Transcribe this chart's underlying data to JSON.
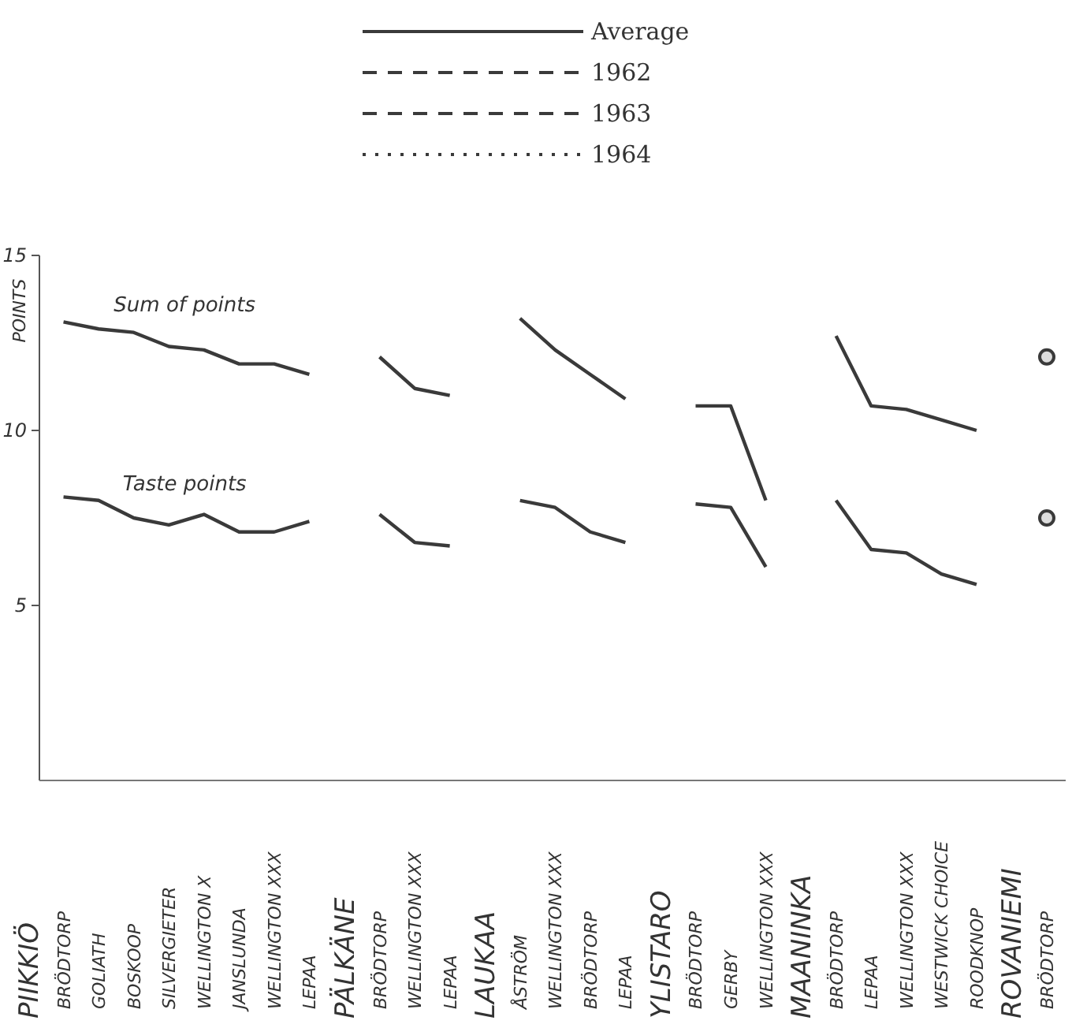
{
  "chart_data": {
    "type": "line",
    "categories": [
      null,
      "BRÖDTORP",
      "GOLIATH",
      "BOSKOOP",
      "SILVERGIETER",
      "WELLINGTON X",
      "JANSLUNDA",
      "WELLINGTON XXX",
      "LEPAA",
      null,
      "BRÖDTORP",
      "WELLINGTON XXX",
      "LEPAA",
      null,
      "ÅSTRÖM",
      "WELLINGTON XXX",
      "BRÖDTORP",
      "LEPAA",
      null,
      "BRÖDTORP",
      "GERBY",
      "WELLINGTON XXX",
      null,
      "BRÖDTORP",
      "LEPAA",
      "WELLINGTON XXX",
      "WESTWICK CHOICE",
      "ROODKNOP",
      null,
      "BRÖDTORP"
    ],
    "series": [
      {
        "name": "Average",
        "color": "#3a3a3a",
        "line_style": "solid",
        "values": [
          null,
          13.1,
          12.9,
          12.8,
          12.4,
          12.3,
          11.9,
          11.9,
          11.6,
          null,
          12.1,
          11.2,
          11.0,
          null,
          13.2,
          12.3,
          11.6,
          10.9,
          null,
          10.7,
          10.7,
          8.0,
          null,
          12.7,
          10.7,
          10.6,
          10.3,
          10.0,
          null,
          12.1
        ]
      },
      {
        "color": "#3a3a3a",
        "line_style": "solid",
        "values": [
          null,
          8.1,
          8.0,
          7.5,
          7.3,
          7.6,
          7.1,
          7.1,
          7.4,
          null,
          7.6,
          6.8,
          6.7,
          null,
          8.0,
          7.8,
          7.1,
          6.8,
          null,
          7.9,
          7.8,
          6.1,
          null,
          8.0,
          6.6,
          6.5,
          5.9,
          5.6,
          null,
          7.5
        ]
      },
      {
        "name": "1962",
        "color": "#3a3a3a",
        "line_style": "dashed",
        "values": [
          null,
          null,
          null,
          null,
          null,
          null,
          null,
          null,
          null,
          null,
          null,
          null,
          null,
          null,
          null,
          null,
          null,
          null,
          null,
          null,
          null,
          null,
          null,
          null,
          null,
          null,
          null,
          null,
          null,
          null
        ]
      },
      {
        "name": "1963",
        "color": "#3a3a3a",
        "line_style": "dashed",
        "values": [
          null,
          null,
          null,
          null,
          null,
          null,
          null,
          null,
          null,
          null,
          null,
          null,
          null,
          null,
          null,
          null,
          null,
          null,
          null,
          null,
          null,
          null,
          null,
          null,
          null,
          null,
          null,
          null,
          null,
          null
        ]
      },
      {
        "name": "1964",
        "color": "#3a3a3a",
        "line_style": "dotted",
        "values": [
          null,
          null,
          null,
          null,
          null,
          null,
          null,
          null,
          null,
          null,
          null,
          null,
          null,
          null,
          null,
          null,
          null,
          null,
          null,
          null,
          null,
          null,
          null,
          null,
          null,
          null,
          null,
          null,
          null,
          null
        ]
      }
    ],
    "ylabel": "POINTS",
    "ylim": [
      0,
      15
    ],
    "yticks": [
      5,
      10,
      15
    ],
    "legend": "top",
    "annotations": [
      "Sum of points",
      "Taste points",
      "PIIKKIÖ",
      "PÄLKÄNE",
      "LAUKAA",
      "YLISTARO",
      "MAANINKA",
      "ROVANIEMI"
    ]
  }
}
